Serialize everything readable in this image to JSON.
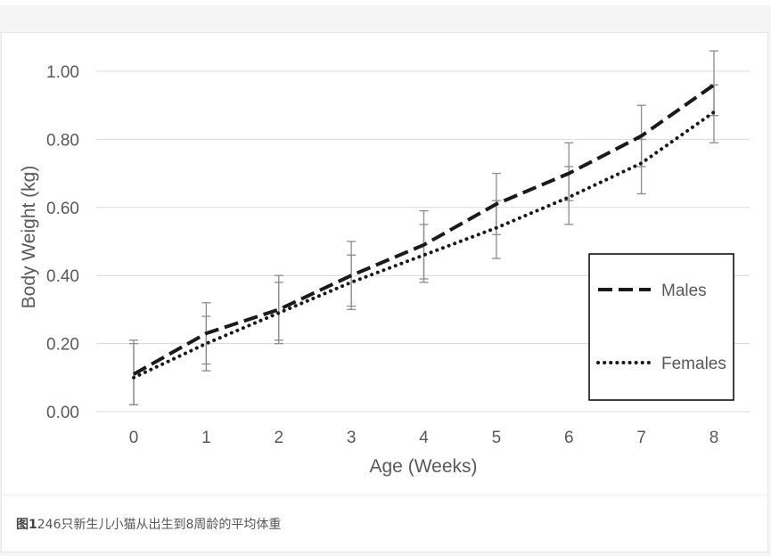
{
  "chart_data": {
    "type": "line",
    "xlabel": "Age (Weeks)",
    "ylabel": "Body Weight (kg)",
    "x": [
      0,
      1,
      2,
      3,
      4,
      5,
      6,
      7,
      8
    ],
    "x_tick_labels": [
      "0",
      "1",
      "2",
      "3",
      "4",
      "5",
      "6",
      "7",
      "8"
    ],
    "y_tick_labels": [
      "0.00",
      "0.20",
      "0.40",
      "0.60",
      "0.80",
      "1.00"
    ],
    "y_ticks": [
      0,
      0.2,
      0.4,
      0.6,
      0.8,
      1.0
    ],
    "ylim": [
      0,
      1.0
    ],
    "xlim": [
      0,
      8
    ],
    "grid": "horizontal",
    "legend_position": "right",
    "series": [
      {
        "name": "Males",
        "style": "dashed",
        "color": "#1a1a1a",
        "values": [
          0.11,
          0.23,
          0.3,
          0.4,
          0.49,
          0.61,
          0.7,
          0.81,
          0.96
        ],
        "error_low": [
          0.02,
          0.14,
          0.21,
          0.31,
          0.39,
          0.52,
          0.62,
          0.72,
          0.87
        ],
        "error_high": [
          0.21,
          0.32,
          0.4,
          0.5,
          0.59,
          0.7,
          0.79,
          0.9,
          1.06
        ]
      },
      {
        "name": "Females",
        "style": "dotted",
        "color": "#1a1a1a",
        "values": [
          0.1,
          0.2,
          0.29,
          0.38,
          0.46,
          0.54,
          0.63,
          0.73,
          0.88
        ],
        "error_low": [
          0.02,
          0.12,
          0.2,
          0.3,
          0.38,
          0.45,
          0.55,
          0.64,
          0.79
        ],
        "error_high": [
          0.2,
          0.28,
          0.38,
          0.46,
          0.55,
          0.62,
          0.72,
          0.8,
          0.96
        ]
      }
    ],
    "errorbar_color": "#8c8c8c",
    "gridline_color": "#d9d9d9"
  },
  "caption": {
    "figure_label": "图1",
    "text": "246只新生儿小猫从出生到8周龄的平均体重"
  }
}
